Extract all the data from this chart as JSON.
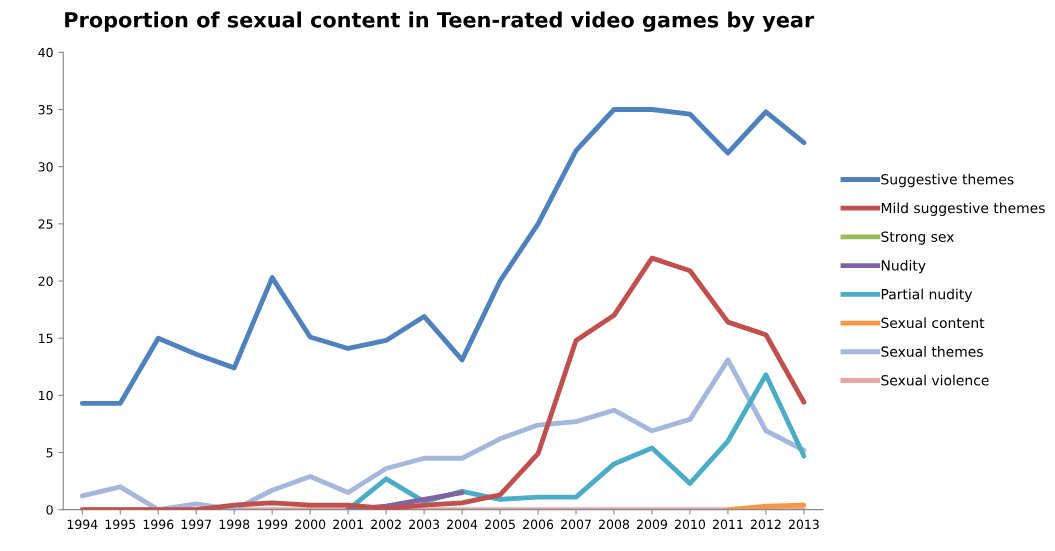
{
  "chart_data": {
    "type": "line",
    "title": "Proportion of sexual content in Teen-rated video games by year",
    "categories": [
      "1994",
      "1995",
      "1996",
      "1997",
      "1998",
      "1999",
      "2000",
      "2001",
      "2002",
      "2003",
      "2004",
      "2005",
      "2006",
      "2007",
      "2008",
      "2009",
      "2010",
      "2011",
      "2012",
      "2013"
    ],
    "series": [
      {
        "name": "Suggestive themes",
        "color": "#4f81bd",
        "values": [
          9.3,
          9.3,
          15,
          13.6,
          12.4,
          20.3,
          15.1,
          14.1,
          14.8,
          16.9,
          13.1,
          20,
          25,
          31.4,
          35,
          35,
          34.6,
          31.2,
          34.8,
          32.1
        ]
      },
      {
        "name": "Mild suggestive themes",
        "color": "#c0504d",
        "values": [
          0,
          0,
          0,
          0,
          0.4,
          0.6,
          0.4,
          0.4,
          0.1,
          0.4,
          0.6,
          1.3,
          4.9,
          14.8,
          17,
          22,
          20.9,
          16.4,
          15.3,
          9.4
        ]
      },
      {
        "name": "Strong sex",
        "color": "#9bbb59",
        "values": [
          null,
          null,
          null,
          null,
          null,
          null,
          null,
          null,
          null,
          null,
          null,
          null,
          null,
          null,
          null,
          null,
          null,
          null,
          null,
          null
        ]
      },
      {
        "name": "Nudity",
        "color": "#8064a2",
        "values": [
          null,
          null,
          null,
          null,
          null,
          null,
          null,
          0,
          0.3,
          0.9,
          1.5,
          null,
          null,
          null,
          null,
          null,
          null,
          null,
          null,
          null
        ]
      },
      {
        "name": "Partial nudity",
        "color": "#4bacc6",
        "values": [
          null,
          null,
          null,
          null,
          null,
          null,
          null,
          0,
          2.7,
          0.7,
          1.6,
          0.9,
          1.1,
          1.1,
          4,
          5.4,
          2.3,
          6,
          11.8,
          4.7
        ]
      },
      {
        "name": "Sexual content",
        "color": "#f79646",
        "values": [
          null,
          null,
          null,
          null,
          null,
          null,
          null,
          null,
          null,
          null,
          null,
          null,
          null,
          null,
          null,
          null,
          null,
          0,
          0.3,
          0.4
        ]
      },
      {
        "name": "Sexual themes",
        "color": "#a5b8dc",
        "values": [
          1.2,
          2.0,
          0,
          0.5,
          0,
          1.7,
          2.9,
          1.5,
          3.6,
          4.5,
          4.5,
          6.2,
          7.4,
          7.7,
          8.7,
          6.9,
          7.9,
          13.1,
          6.9,
          5.2
        ]
      },
      {
        "name": "Sexual violence",
        "color": "#e6a6a6",
        "values": [
          0,
          0,
          0,
          0,
          0,
          0,
          0,
          0,
          0,
          0,
          0,
          0,
          0,
          0,
          0,
          0,
          0,
          0,
          0,
          0
        ]
      }
    ],
    "ylim": [
      0,
      40
    ],
    "yticks": [
      0,
      5,
      10,
      15,
      20,
      25,
      30,
      35,
      40
    ],
    "grid": false,
    "legend": "right",
    "marker": "none",
    "line_style": "solid"
  }
}
